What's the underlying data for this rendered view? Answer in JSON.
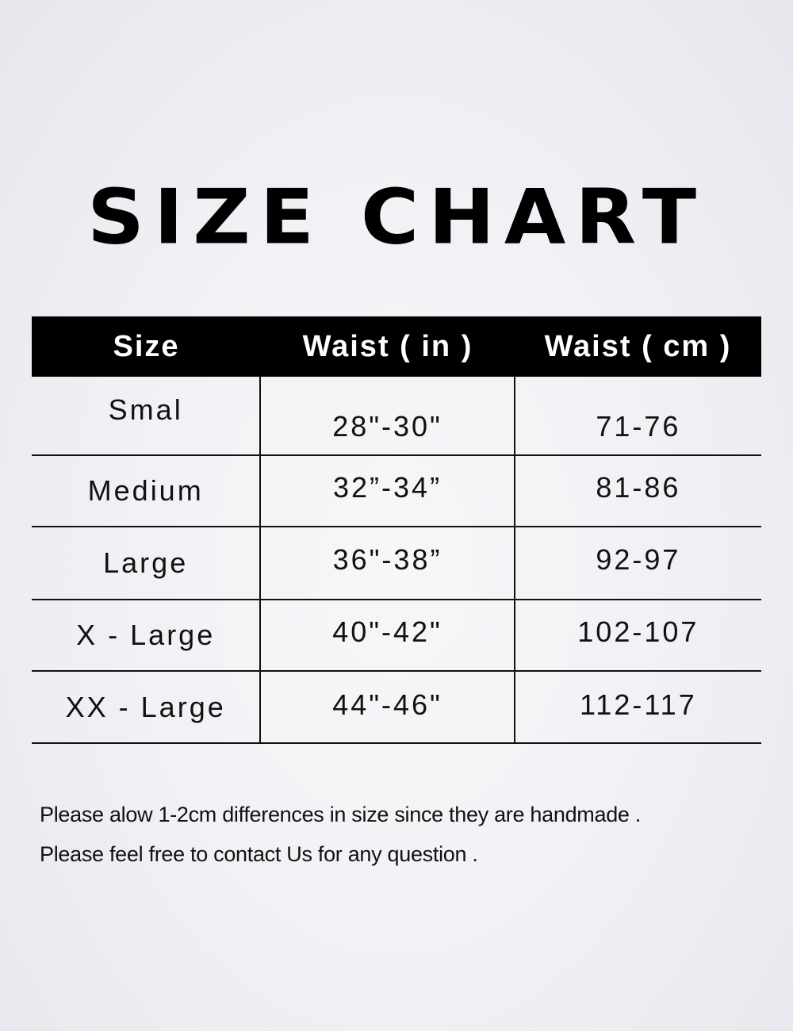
{
  "title": "SIZE CHART",
  "table": {
    "headers": [
      "Size",
      "Waist ( in )",
      "Waist ( cm )"
    ],
    "rows": [
      [
        "Smal",
        "28\"-30\"",
        "71-76"
      ],
      [
        "Medium",
        "32”-34”",
        "81-86"
      ],
      [
        "Large",
        "36\"-38”",
        "92-97"
      ],
      [
        "X - Large",
        "40\"-42\"",
        "102-107"
      ],
      [
        "XX - Large",
        "44\"-46\"",
        "112-117"
      ]
    ]
  },
  "notes": [
    "Please alow 1-2cm differences in size since they are handmade .",
    "Please feel free to contact Us for any question ."
  ],
  "colors": {
    "header_bg": "#000000",
    "header_text": "#ffffff",
    "text": "#111111"
  }
}
